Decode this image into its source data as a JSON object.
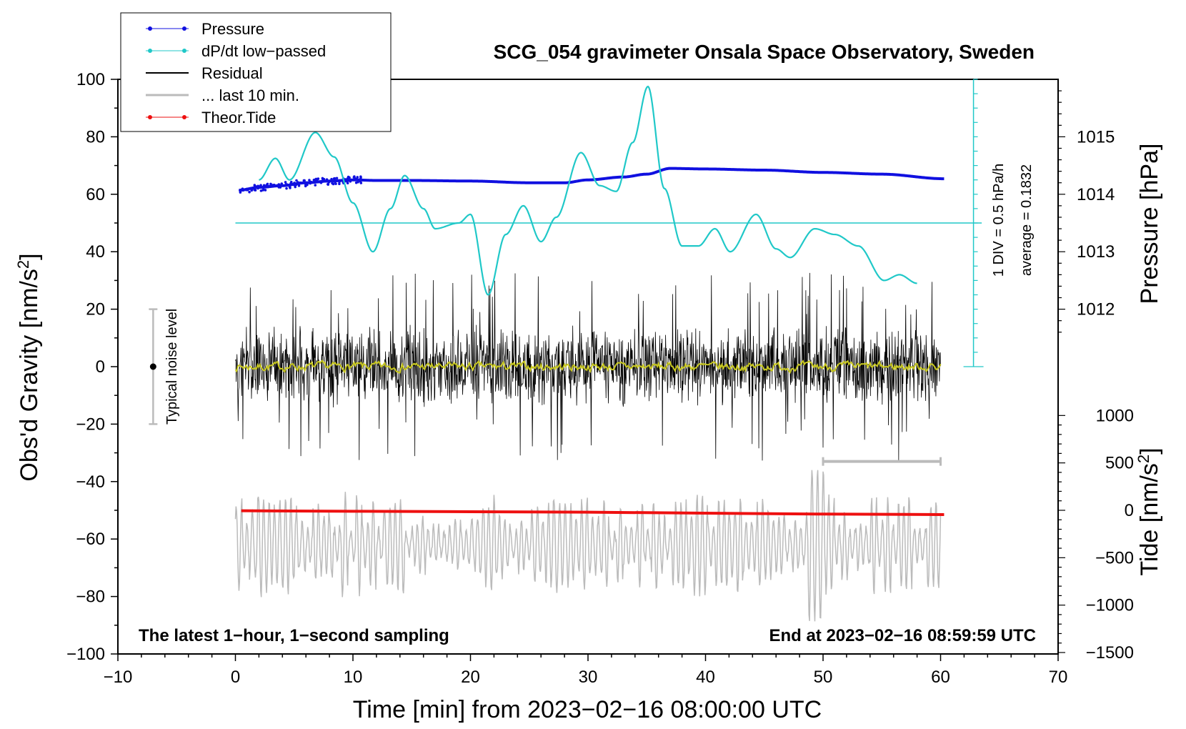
{
  "chart_data": {
    "type": "line",
    "title": "SCG_054 gravimeter Onsala Space Observatory, Sweden",
    "xlabel": "Time [min] from 2023−02−16 08:00:00 UTC",
    "ylabel_left": "Obs'd Gravity [nm/s",
    "ylabel_left_sup": "2",
    "ylabel_left_tail": "]",
    "ylabel_right_pressure": "Pressure [hPa]",
    "ylabel_right_tide": "Tide [nm/s",
    "ylabel_right_tide_sup": "2",
    "ylabel_right_tide_tail": "]",
    "xlim": [
      -10,
      70
    ],
    "ylim": [
      -100,
      100
    ],
    "x_ticks": [
      "−10",
      "0",
      "10",
      "20",
      "30",
      "40",
      "50",
      "60",
      "70"
    ],
    "y_ticks": [
      "−100",
      "−80",
      "−60",
      "−40",
      "−20",
      "0",
      "20",
      "40",
      "60",
      "80",
      "100"
    ],
    "pressure_ticks": [
      "1012",
      "1013",
      "1014",
      "1015"
    ],
    "tide_ticks": [
      "−1500",
      "−1000",
      "−500",
      "0",
      "500",
      "1000"
    ],
    "legend": [
      "Pressure",
      "dP/dt low−passed",
      "Residual",
      "... last 10 min.",
      "Theor.Tide"
    ],
    "colors": {
      "pressure": "#1010e0",
      "dpdt": "#20c8c8",
      "residual": "#000000",
      "smooth": "#c8c820",
      "last10": "#bbbbbb",
      "tide": "#ee1010"
    },
    "noise_label": "Typical noise level",
    "dpdt_scale_label": "1 DIV = 0.5 hPa/h",
    "dpdt_average_label": "average = 0.1832",
    "bottom_left_note": "The latest 1−hour, 1−second sampling",
    "bottom_right_note": "End at 2023−02−16 08:59:59 UTC",
    "pressure_series": {
      "name": "Pressure",
      "unit": "hPa",
      "x": [
        0.3,
        2,
        4,
        6,
        8,
        10,
        12,
        15,
        20,
        25,
        28,
        30,
        33,
        35,
        37,
        40,
        45,
        50,
        55,
        60.3
      ],
      "values": [
        1014.07,
        1014.12,
        1014.15,
        1014.2,
        1014.23,
        1014.25,
        1014.24,
        1014.24,
        1014.23,
        1014.2,
        1014.2,
        1014.25,
        1014.3,
        1014.35,
        1014.45,
        1014.44,
        1014.42,
        1014.38,
        1014.35,
        1014.27
      ]
    },
    "dpdt_series": {
      "name": "dP/dt low−passed",
      "unit": "nm/s2 display",
      "x": [
        2,
        3.4,
        4.6,
        6.8,
        8.4,
        10,
        11.7,
        13.2,
        14.4,
        16,
        17,
        19,
        20,
        21.5,
        23,
        24.5,
        26,
        27.3,
        29.4,
        31,
        32.4,
        33.8,
        35.1,
        36.5,
        38,
        39.4,
        40.8,
        42.1,
        44.3,
        46,
        47.2,
        49.3,
        51,
        53,
        55.2,
        56.5,
        58
      ],
      "values": [
        65,
        72.5,
        65,
        81.5,
        73,
        57,
        40,
        55,
        66.5,
        55,
        48,
        50,
        53,
        25,
        46,
        56,
        43.5,
        52,
        74.5,
        63,
        61,
        78,
        97.5,
        62,
        42,
        42,
        48,
        40,
        53,
        41,
        38,
        48,
        46,
        42,
        30,
        32,
        29
      ]
    },
    "residual_series": {
      "name": "Residual",
      "x_range": [
        0,
        60
      ],
      "envelope_nm_s2": [
        -35,
        36
      ],
      "typical_amplitude": 15
    },
    "residual_smooth_series": {
      "name": "Residual smoothed",
      "x_range": [
        0,
        60
      ],
      "values_range": [
        -2,
        2
      ]
    },
    "last10_series": {
      "name": "... last 10 min.",
      "x_range": [
        0,
        60
      ],
      "baseline": -62,
      "envelope": [
        -91,
        -36
      ],
      "bracket_x": [
        50,
        60
      ],
      "bracket_y": -33
    },
    "tide_series": {
      "name": "Theor.Tide",
      "unit": "nm/s2",
      "x": [
        0.5,
        10,
        20,
        30,
        40,
        50,
        60.3
      ],
      "values": [
        -5,
        -10,
        -15,
        -20,
        -30,
        -40,
        -45
      ]
    },
    "noise_bar": {
      "x": -7,
      "center": 0,
      "low": -20,
      "high": 20
    },
    "dpdt_reference_level": 50,
    "dpdt_scale_axis": {
      "x": 62.8,
      "from": 0,
      "to": 100,
      "divisions": 20
    }
  }
}
